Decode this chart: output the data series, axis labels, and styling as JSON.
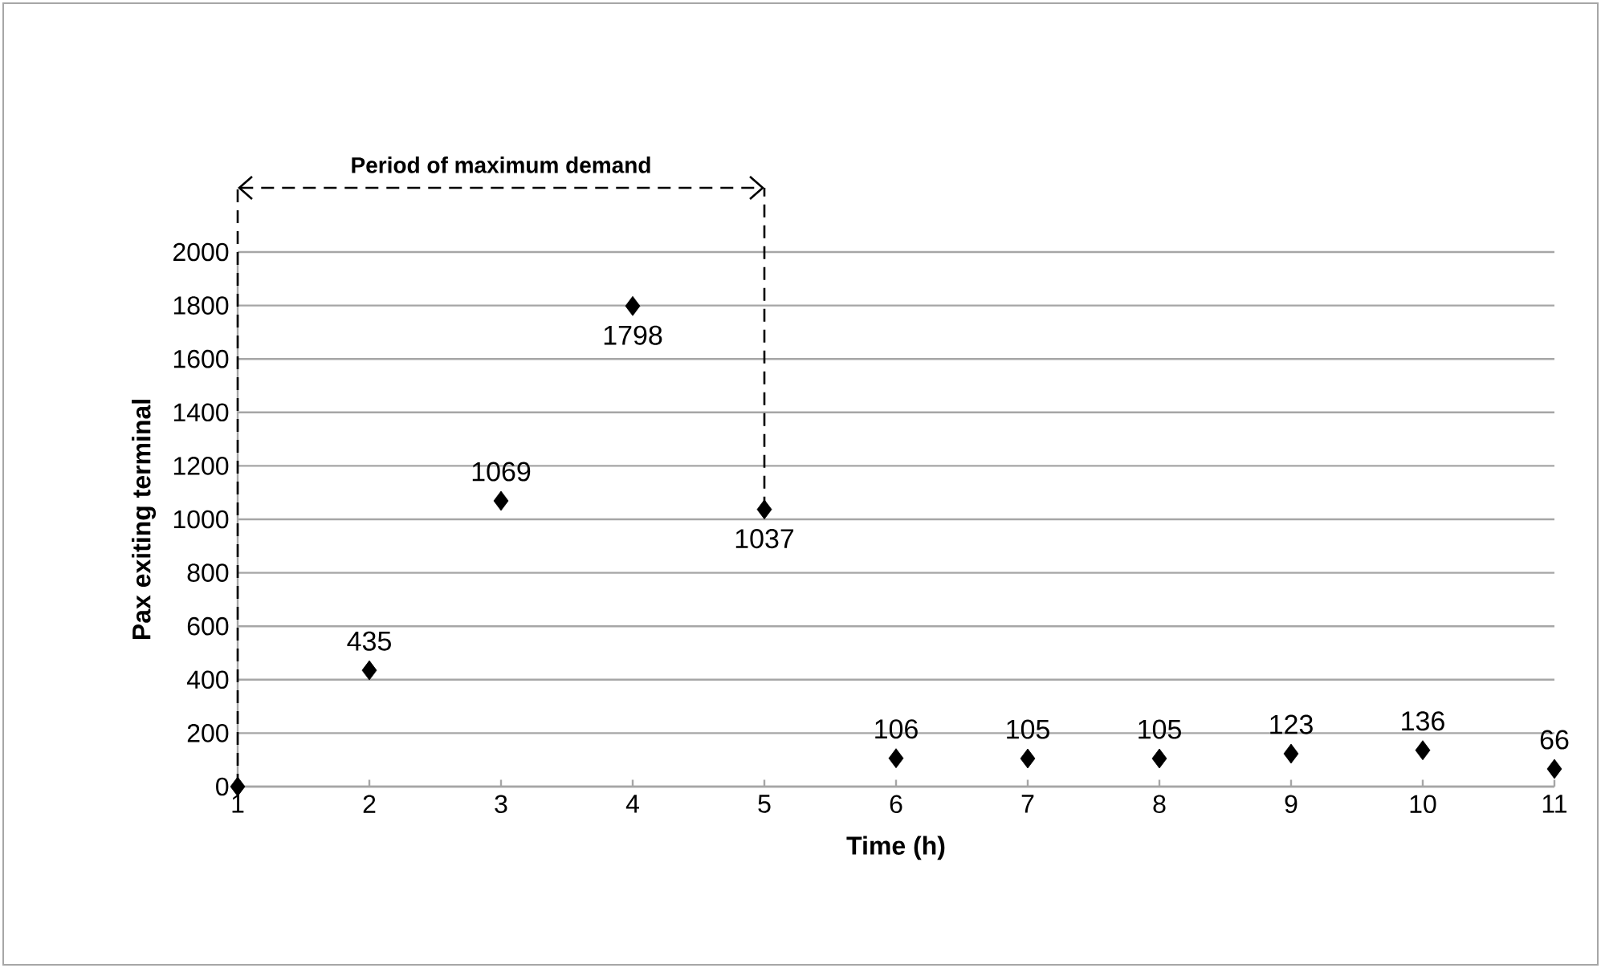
{
  "chart_data": {
    "type": "scatter",
    "xlabel": "Time (h)",
    "ylabel": "Pax exiting terminal",
    "x": [
      1,
      2,
      3,
      4,
      5,
      6,
      7,
      8,
      9,
      10,
      11
    ],
    "values": [
      0,
      435,
      1069,
      1798,
      1037,
      106,
      105,
      105,
      123,
      136,
      66
    ],
    "value_labels": [
      null,
      "435",
      "1069",
      "1798",
      "1037",
      "106",
      "105",
      "105",
      "123",
      "136",
      "66"
    ],
    "color": "#000000",
    "marker": "diamond",
    "grid": "y",
    "xlim": [
      1,
      11
    ],
    "ylim": [
      0,
      2000
    ],
    "xticks": [
      1,
      2,
      3,
      4,
      5,
      6,
      7,
      8,
      9,
      10,
      11
    ],
    "yticks": [
      0,
      200,
      400,
      600,
      800,
      1000,
      1200,
      1400,
      1600,
      1800,
      2000
    ],
    "ref_lines": [
      {
        "axis": "x",
        "value": 1,
        "line_style": "dashed"
      },
      {
        "axis": "x",
        "value": 5,
        "line_style": "dashed"
      }
    ],
    "annotations": [
      "Period of maximum demand"
    ]
  }
}
